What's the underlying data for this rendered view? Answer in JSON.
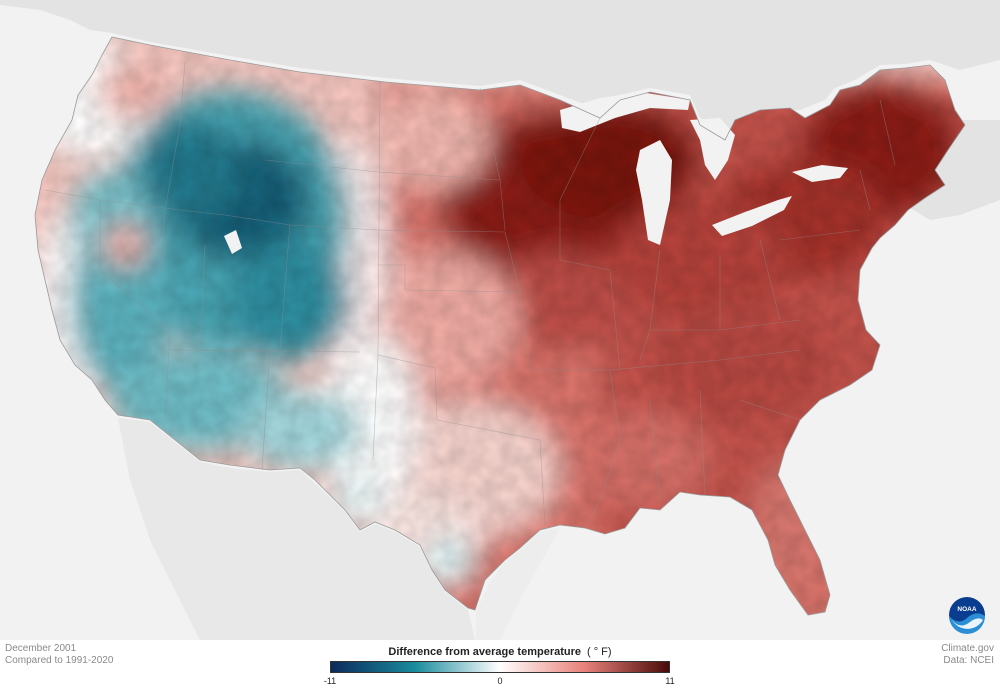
{
  "map": {
    "type": "choropleth",
    "region": "contiguous United States",
    "variable": "Difference from average temperature",
    "unit": "(°F)",
    "scale_min": -11,
    "scale_max": 11,
    "colors": {
      "cold_extreme": "#0b2a5c",
      "cold": "#1a8c9e",
      "neutral": "#ffffff",
      "warm": "#e8817a",
      "warm_extreme": "#4a0a08",
      "land_outside": "#e3e3e3",
      "water": "#f2f2f2"
    }
  },
  "legend": {
    "title": "Difference from average temperature",
    "unit": "( ° F)",
    "ticks": [
      {
        "label": "-11",
        "value": -11
      },
      {
        "label": "0",
        "value": 0
      },
      {
        "label": "11",
        "value": 11
      }
    ]
  },
  "footer": {
    "date": "December 2001",
    "baseline": "Compared to 1991-2020",
    "source_site": "Climate.gov",
    "data_source": "Data: NCEI"
  },
  "logo": {
    "text": "NOAA",
    "icon": "noaa-logo-icon"
  }
}
